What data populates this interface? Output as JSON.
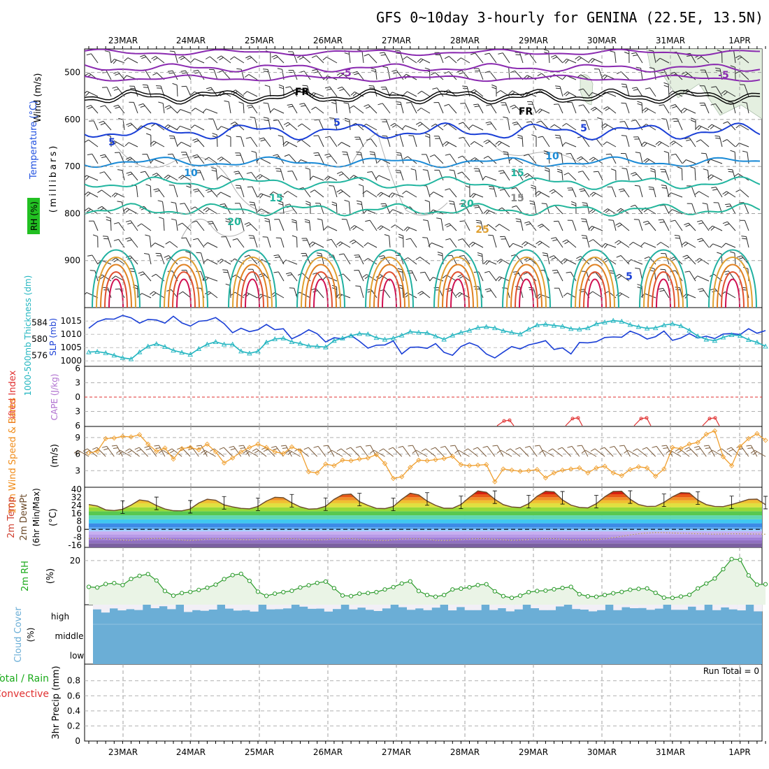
{
  "title": "GFS 0~10day 3-hourly for GENINA (22.5E, 13.5N)",
  "x_axis": {
    "days": [
      "23MAR",
      "24MAR",
      "25MAR",
      "26MAR",
      "27MAR",
      "28MAR",
      "29MAR",
      "30MAR",
      "31MAR",
      "1APR"
    ]
  },
  "run_total_label": "Run Total = 0",
  "panel_labels": {
    "upper_air": {
      "wind": "Wind (m/s)",
      "temperature": "Temperature (°C)",
      "rh": "RH (%)",
      "unit": "(millibars)"
    },
    "thickness_slp": {
      "thickness": "1000-500mb Thickness (dm)",
      "slp": "SLP (mb)"
    },
    "instability": {
      "lifted_index": "Lifted Index",
      "cape": "CAPE (J/kg)"
    },
    "wind10m": {
      "title": "10m Wind Speed & Barbs",
      "unit": "(m/s)"
    },
    "temp2m": {
      "line1": "2m Temp",
      "line2": "2m DewPt",
      "line3": "(6hr Min/Max)",
      "unit": "(°C)"
    },
    "rh2m": {
      "title": "2m RH",
      "unit": "(%)"
    },
    "cloud": {
      "title": "Cloud Cover",
      "unit": "(%)",
      "levels": [
        "high",
        "middle",
        "low"
      ]
    },
    "precip": {
      "line1": "Total / Rain",
      "line2": "Convective",
      "line3": "3hr Precip (mm)"
    }
  },
  "colors": {
    "slp": "#1a3fd6",
    "thickness": "#22b5c0",
    "wind_speed": "#f0a030",
    "barb": "#7a5a3a",
    "temp_line": "#6b4a2a",
    "rh_line": "#2a9a2a",
    "rh_fill": "#eaf4e6",
    "cloud": "#6baed6",
    "cloud_gap": "#f2eff6",
    "rh_label": "#1aaa1a",
    "wind_label": "#f08c1a",
    "cape_label": "#b070d0",
    "li_label": "#e03030",
    "temp_label": "#d04030"
  },
  "chart_data": [
    {
      "type": "line",
      "name": "upper_air_cross_section",
      "y_ticks": [
        500,
        600,
        700,
        800,
        900
      ],
      "ylim": [
        1000,
        450
      ],
      "isotherm_labels": [
        "-5",
        "FR",
        "FR",
        "5",
        "5",
        "-5",
        "5",
        "10",
        "10",
        "15",
        "15",
        "20",
        "20",
        "25",
        "15",
        "5"
      ]
    },
    {
      "type": "line",
      "name": "thickness_and_slp",
      "thickness_ticks": [
        576,
        580,
        584
      ],
      "slp_ticks": [
        1000,
        1005,
        1010,
        1015
      ],
      "slp_range": [
        999,
        1019
      ],
      "thickness_range": [
        574,
        587
      ],
      "series": [
        {
          "key": "slp",
          "values": [
            1012.3,
            1014.7,
            1015.8,
            1015.7,
            1017.1,
            1016.2,
            1014.2,
            1015.6,
            1015.4,
            1014.2,
            1016.8,
            1014.3,
            1013.1,
            1014.9,
            1015.2,
            1016.3,
            1014.0,
            1010.6,
            1012.3,
            1011.0,
            1011.7,
            1013.7,
            1011.7,
            1012.1,
            1008.3,
            1009.8,
            1011.7,
            1010.2,
            1007.1,
            1008.7,
            1008.3,
            1009.6,
            1007.4,
            1004.8,
            1005.9,
            1006.0,
            1007.5,
            1002.6,
            1005.1,
            1005.2,
            1004.7,
            1006.5,
            1003.2,
            1002.1,
            1005.4,
            1006.8,
            1005.6,
            1002.6,
            1001.1,
            1003.3,
            1005.4,
            1004.5,
            1006.0,
            1006.7,
            1007.6,
            1004.3,
            1004.9,
            1002.6,
            1006.9,
            1006.8,
            1007.2,
            1008.8,
            1009.0,
            1008.9,
            1011.2,
            1010.0,
            1008.2,
            1009.1,
            1011.2,
            1007.7,
            1008.6,
            1010.3,
            1008.6,
            1009.3,
            1008.4,
            1010.1,
            1010.3,
            1009.9,
            1012.1,
            1010.4,
            1011.4
          ]
        },
        {
          "key": "thickness",
          "values": [
            576.8,
            576.9,
            576.6,
            576.0,
            575.4,
            575.1,
            576.8,
            578.2,
            578.8,
            578.1,
            577.2,
            576.7,
            576.2,
            577.6,
            578.7,
            579.3,
            578.7,
            578.7,
            577.0,
            576.5,
            577.0,
            579.2,
            580.0,
            580.2,
            579.3,
            578.9,
            578.3,
            578.2,
            578.0,
            579.6,
            580.2,
            580.8,
            581.3,
            581.2,
            580.3,
            579.9,
            580.2,
            580.9,
            581.8,
            581.6,
            581.5,
            580.7,
            579.9,
            580.9,
            581.6,
            582.1,
            582.8,
            583.0,
            582.7,
            582.0,
            581.6,
            581.2,
            582.4,
            583.4,
            583.6,
            583.3,
            583.1,
            582.5,
            582.4,
            582.7,
            583.7,
            584.1,
            584.5,
            584.3,
            583.5,
            583.0,
            582.6,
            582.7,
            583.4,
            583.7,
            583.2,
            582.1,
            580.7,
            579.9,
            579.6,
            580.4,
            581.0,
            580.8,
            579.8,
            579.2,
            578.2
          ]
        }
      ]
    },
    {
      "type": "line",
      "name": "lifted_index_cape",
      "li_ticks": [
        -6,
        -3,
        0,
        3,
        6
      ],
      "li_range": [
        -6,
        6
      ],
      "li_peaks": [
        {
          "time": "28MAR",
          "value": 5.0
        },
        {
          "time": "29MAR",
          "value": 4.5
        },
        {
          "time": "30MAR",
          "value": 4.5
        },
        {
          "time": "31MAR",
          "value": 4.5
        }
      ]
    },
    {
      "type": "line",
      "name": "wind10m_speed",
      "y_ticks": [
        3,
        6,
        9
      ],
      "ylim": [
        0,
        11
      ],
      "values": [
        6.2,
        6.5,
        8.8,
        8.9,
        9.2,
        9.1,
        9.5,
        7.8,
        6.5,
        7.1,
        5.1,
        7.0,
        7.2,
        6.8,
        7.8,
        6.4,
        4.4,
        5.3,
        6.4,
        7.2,
        7.8,
        7.2,
        6.4,
        6.1,
        7.3,
        6.6,
        2.8,
        2.6,
        4.2,
        3.9,
        4.9,
        4.8,
        5.1,
        5.3,
        5.9,
        4.3,
        1.6,
        1.9,
        3.6,
        4.9,
        4.8,
        5.0,
        5.2,
        5.6,
        4.1,
        3.9,
        4.0,
        4.1,
        1.0,
        3.3,
        3.1,
        2.9,
        3.0,
        3.2,
        1.7,
        2.6,
        3.1,
        3.3,
        3.5,
        2.6,
        3.5,
        3.8,
        2.6,
        2.1,
        3.2,
        3.7,
        3.5,
        2.0,
        3.3,
        7.2,
        7.0,
        7.8,
        8.1,
        9.6,
        10.2,
        5.5,
        3.9,
        7.4,
        8.8,
        9.7,
        8.5
      ]
    },
    {
      "type": "area",
      "name": "temp2m_dewpoint",
      "y_ticks": [
        -16,
        -8,
        0,
        8,
        16,
        24,
        32,
        40
      ],
      "ylim": [
        -18,
        42
      ],
      "series": [
        {
          "key": "temperature",
          "values": [
            24.8,
            23.3,
            19.5,
            18.8,
            20.1,
            24.2,
            29.4,
            28.2,
            23.8,
            20.4,
            18.6,
            18.5,
            20.4,
            26.3,
            30.1,
            29.1,
            24.4,
            22.4,
            20.9,
            20.5,
            22.9,
            28.2,
            32.0,
            31.6,
            26.5,
            22.4,
            20.2,
            20.6,
            23.0,
            30.0,
            34.6,
            35.2,
            27.6,
            23.9,
            20.9,
            20.7,
            22.8,
            30.0,
            36.1,
            34.4,
            28.2,
            23.9,
            21.1,
            21.1,
            24.8,
            32.0,
            38.4,
            37.0,
            30.0,
            24.7,
            22.3,
            21.8,
            25.6,
            33.1,
            38.0,
            37.5,
            29.4,
            24.2,
            21.9,
            21.4,
            25.6,
            32.5,
            37.8,
            38.0,
            30.1,
            24.8,
            22.9,
            23.0,
            26.9,
            32.5,
            36.6,
            36.3,
            29.1,
            24.7,
            22.9,
            22.7,
            24.8,
            27.2,
            29.9,
            30.2,
            24.6
          ]
        },
        {
          "key": "dewpoint",
          "values": [
            -9.1,
            -9.0,
            -9.4,
            -10.1,
            -10.6,
            -10.8,
            -10.2,
            -9.3,
            -9.0,
            -9.2,
            -10.1,
            -10.6,
            -10.9,
            -10.5,
            -9.7,
            -9.5,
            -9.3,
            -9.8,
            -10.2,
            -10.3,
            -9.9,
            -9.5,
            -9.6,
            -9.4,
            -9.2,
            -9.9,
            -10.4,
            -10.6,
            -10.2,
            -9.5,
            -9.2,
            -9.2,
            -9.9,
            -10.6,
            -10.9,
            -11.0,
            -10.4,
            -9.7,
            -9.4,
            -9.5,
            -10.0,
            -10.8,
            -11.0,
            -10.7,
            -10.2,
            -9.6,
            -9.3,
            -9.4,
            -9.9,
            -10.4,
            -10.8,
            -10.6,
            -10.1,
            -9.6,
            -9.3,
            -9.3,
            -9.9,
            -10.3,
            -10.5,
            -10.5,
            -10.1,
            -9.6,
            -8.3,
            -7.0,
            -5.5,
            -4.5,
            -3.6,
            -3.2,
            -3.3,
            -3.6,
            -4.0,
            -4.1,
            -4.4,
            -4.6,
            -4.8,
            -4.6,
            -4.4,
            -4.5,
            -4.6,
            -4.7,
            -4.9
          ]
        }
      ]
    },
    {
      "type": "area",
      "name": "rh2m",
      "y_ticks": [
        20
      ],
      "ylim": [
        0,
        26
      ],
      "values": [
        8.1,
        7.8,
        9.4,
        9.8,
        8.9,
        11.7,
        13.1,
        13.9,
        11.0,
        6.2,
        4.1,
        5.3,
        5.8,
        6.7,
        7.7,
        9.1,
        11.6,
        13.4,
        14.0,
        10.8,
        5.9,
        4.0,
        5.0,
        5.7,
        6.3,
        7.8,
        8.8,
        9.9,
        10.5,
        7.5,
        4.2,
        3.9,
        5.0,
        5.3,
        5.7,
        6.9,
        8.0,
        9.6,
        10.6,
        6.2,
        4.4,
        3.6,
        4.4,
        6.9,
        7.3,
        7.9,
        8.9,
        9.3,
        6.1,
        3.9,
        3.1,
        4.1,
        5.7,
        6.2,
        6.4,
        7.0,
        7.6,
        8.1,
        4.8,
        3.8,
        3.6,
        4.4,
        5.2,
        5.8,
        6.8,
        7.2,
        7.4,
        5.4,
        3.2,
        3.1,
        3.7,
        4.5,
        7.4,
        9.6,
        11.9,
        16.1,
        20.7,
        20.4,
        13.3,
        9.1,
        9.3
      ]
    },
    {
      "type": "bar",
      "name": "cloud_cover_high",
      "values": [
        76,
        60,
        81,
        71,
        77,
        73,
        100,
        82,
        92,
        77,
        100,
        63,
        72,
        69,
        75,
        100,
        80,
        70,
        72,
        65,
        100,
        76,
        77,
        81,
        100,
        90,
        79,
        80,
        65,
        78,
        100,
        76,
        85,
        74,
        68,
        81,
        100,
        87,
        74,
        81,
        72,
        85,
        100,
        71,
        88,
        72,
        72,
        100,
        73,
        82,
        66,
        76,
        100,
        82,
        72,
        72,
        91,
        100,
        78,
        75,
        66,
        72,
        100,
        72,
        87,
        82,
        83,
        74,
        80,
        100,
        74,
        74,
        90,
        72,
        100,
        72,
        86,
        76,
        71,
        100,
        66
      ]
    },
    {
      "type": "line",
      "name": "precip_3hr",
      "y_ticks": [
        0,
        0.2,
        0.4,
        0.6,
        0.8
      ],
      "ylim": [
        0,
        1.0
      ],
      "series": [
        {
          "key": "total",
          "values": [
            0
          ]
        }
      ]
    }
  ]
}
